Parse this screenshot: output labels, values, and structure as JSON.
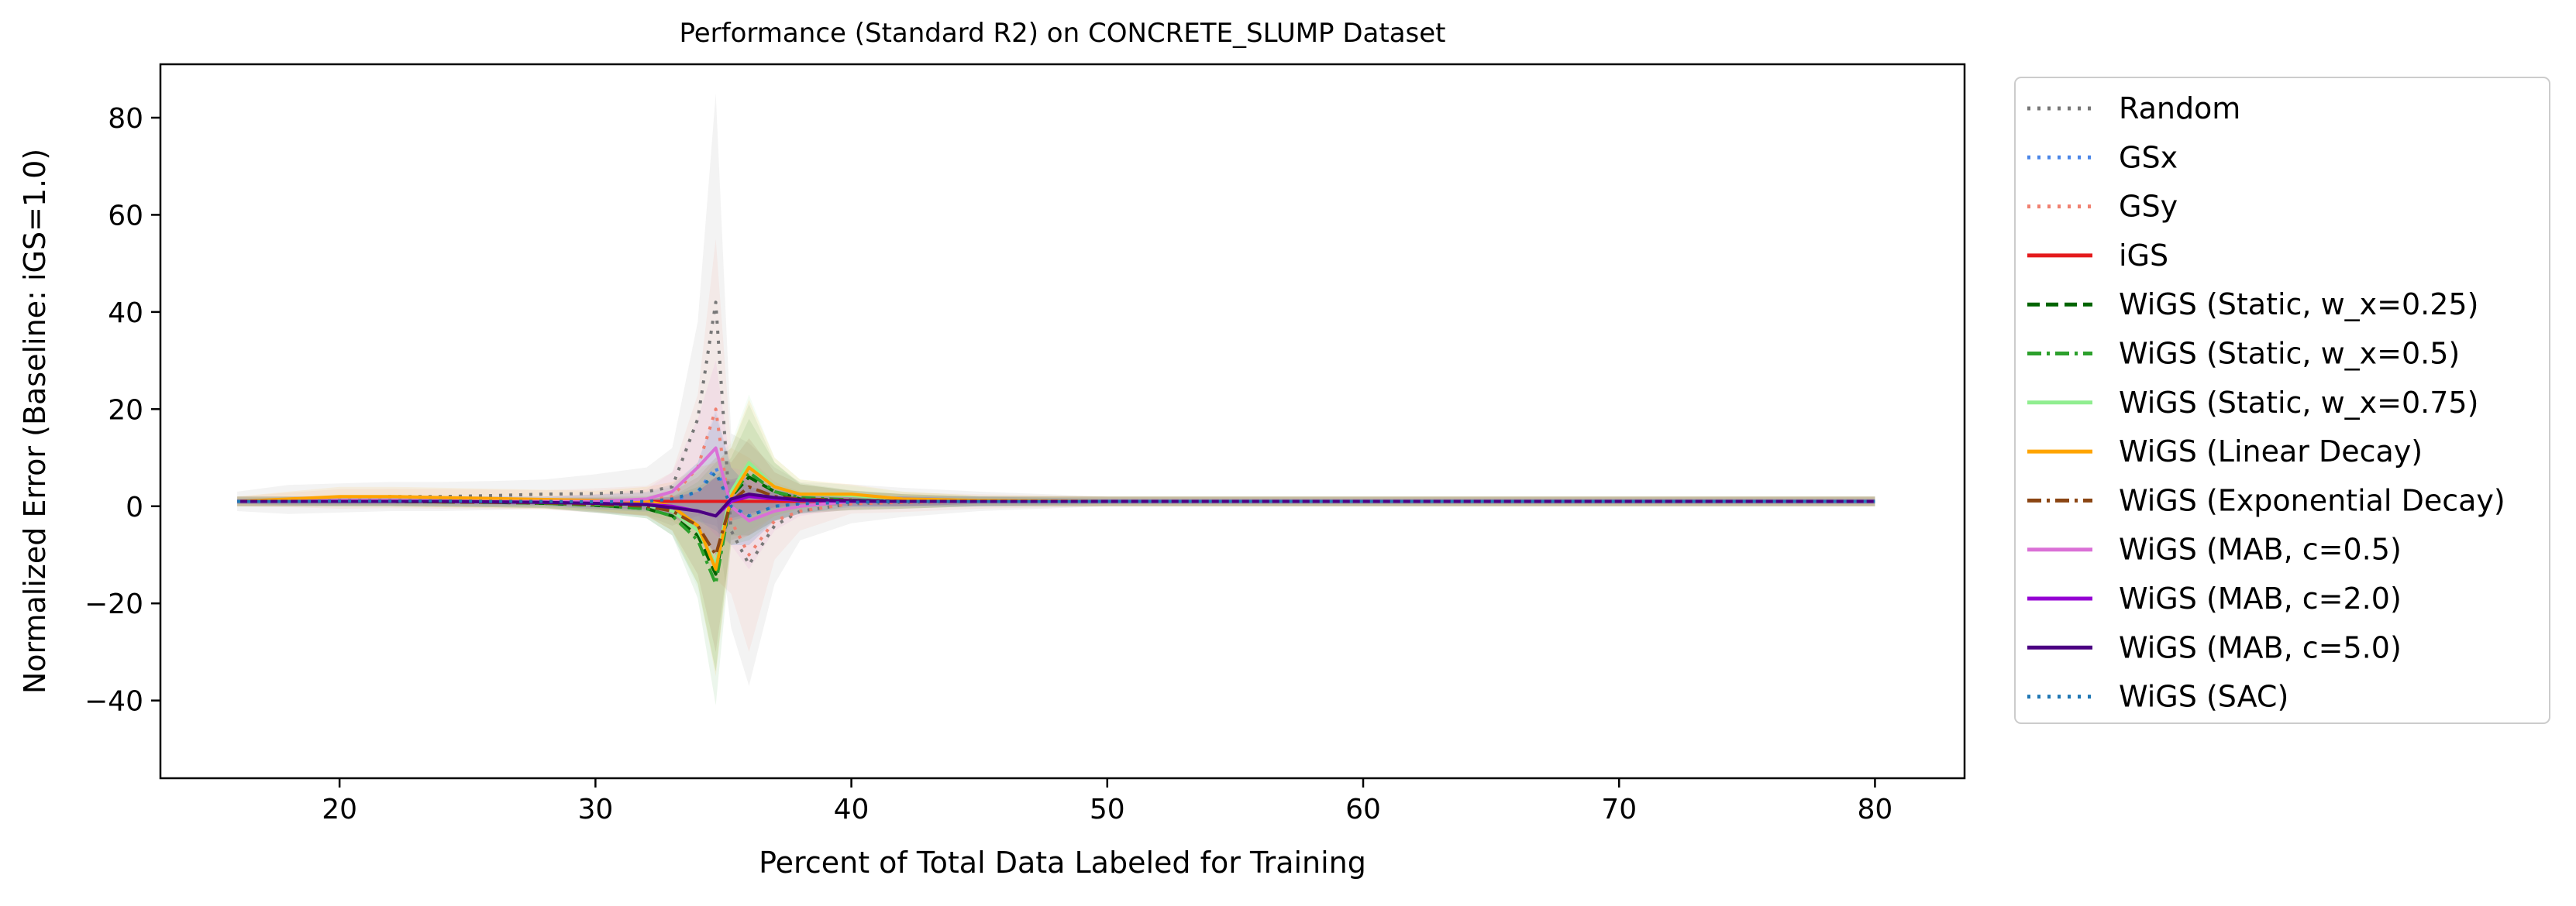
{
  "chart_data": {
    "type": "line",
    "title": "Performance (Standard R2) on CONCRETE_SLUMP Dataset",
    "xlabel": "Percent of Total Data Labeled for Training",
    "ylabel": "Normalized Error (Baseline: iGS=1.0)",
    "xlim": [
      13,
      83.5
    ],
    "ylim": [
      -56,
      91
    ],
    "xticks": [
      20,
      30,
      40,
      50,
      60,
      70,
      80
    ],
    "yticks": [
      -40,
      -20,
      0,
      20,
      40,
      60,
      80
    ],
    "grid": false,
    "legend_position": "outside-right",
    "x": [
      16,
      18,
      20,
      22,
      24,
      26,
      28,
      30,
      32,
      33,
      34,
      34.7,
      35.3,
      36,
      37,
      38,
      40,
      42,
      45,
      50,
      55,
      60,
      65,
      70,
      75,
      80
    ],
    "series": [
      {
        "name": "Random",
        "color": "#777777",
        "dash": "dot",
        "values": [
          1,
          1.4,
          1.7,
          2,
          2,
          2.2,
          2.5,
          2.6,
          3,
          4,
          18,
          42,
          -5,
          -12,
          -4,
          -1,
          0.5,
          0.8,
          1,
          1,
          1,
          1,
          1,
          1,
          1,
          1
        ],
        "band": [
          2,
          3,
          3,
          3,
          3,
          3,
          3,
          4,
          5,
          8,
          20,
          43,
          20,
          25,
          12,
          6,
          4,
          3,
          2,
          1,
          1,
          1,
          1,
          1,
          1,
          1
        ]
      },
      {
        "name": "GSx",
        "color": "#4a86e8",
        "dash": "dot",
        "values": [
          1,
          1.1,
          1.2,
          1.2,
          1.1,
          1,
          1,
          0.9,
          0.8,
          1,
          3,
          8,
          0,
          -2,
          0,
          0.5,
          1,
          1,
          1,
          1,
          1,
          1,
          1,
          1,
          1,
          1
        ],
        "band": [
          0.5,
          0.8,
          1,
          1,
          1,
          1,
          1,
          1.5,
          2,
          3,
          6,
          12,
          8,
          6,
          3,
          2,
          1,
          1,
          1,
          0.5,
          0.5,
          0.5,
          0.5,
          0.5,
          0.5,
          0.5
        ]
      },
      {
        "name": "GSy",
        "color": "#f08070",
        "dash": "dot",
        "values": [
          1,
          1.3,
          1.5,
          1.6,
          1.5,
          1.4,
          1.3,
          1.2,
          1.2,
          2,
          8,
          20,
          -3,
          -10,
          -3,
          -1,
          0.5,
          0.8,
          1,
          1,
          1,
          1,
          1,
          1,
          1,
          1
        ],
        "band": [
          1,
          1.5,
          2,
          2,
          2,
          2,
          2,
          2.5,
          3,
          5,
          15,
          35,
          15,
          20,
          8,
          4,
          2,
          2,
          1.5,
          1,
          1,
          1,
          1,
          1,
          1,
          1
        ]
      },
      {
        "name": "iGS",
        "color": "#e41a1c",
        "dash": "solid",
        "values": [
          1,
          1,
          1,
          1,
          1,
          1,
          1,
          1,
          1,
          1,
          1,
          1,
          1,
          1,
          1,
          1,
          1,
          1,
          1,
          1,
          1,
          1,
          1,
          1,
          1,
          1
        ],
        "band": [
          0,
          0,
          0,
          0,
          0,
          0,
          0,
          0,
          0,
          0,
          0,
          0,
          0,
          0,
          0,
          0,
          0,
          0,
          0,
          0,
          0,
          0,
          0,
          0,
          0,
          0
        ]
      },
      {
        "name": "WiGS (Static, w_x=0.25)",
        "color": "#006400",
        "dash": "dash",
        "values": [
          1,
          1,
          1,
          1,
          0.9,
          0.8,
          0.6,
          0.2,
          -0.5,
          -2,
          -6,
          -14,
          2,
          6,
          3,
          1.5,
          1.2,
          1,
          1,
          1,
          1,
          1,
          1,
          1,
          1,
          1
        ],
        "band": [
          1,
          1,
          1,
          1,
          1,
          1,
          1,
          1.5,
          2,
          4,
          10,
          20,
          8,
          12,
          6,
          3,
          2,
          1.5,
          1,
          1,
          1,
          1,
          1,
          1,
          1,
          1
        ]
      },
      {
        "name": "WiGS (Static, w_x=0.5)",
        "color": "#2ca02c",
        "dash": "dashdot",
        "values": [
          1,
          1,
          1,
          1,
          0.9,
          0.8,
          0.6,
          0.2,
          -0.5,
          -2,
          -7,
          -16,
          2,
          7,
          3,
          1.8,
          1.3,
          1,
          1,
          1,
          1,
          1,
          1,
          1,
          1,
          1
        ],
        "band": [
          1,
          1,
          1,
          1,
          1,
          1,
          1,
          1.5,
          2,
          4,
          12,
          25,
          10,
          14,
          6,
          3,
          2,
          1.5,
          1,
          1,
          1,
          1,
          1,
          1,
          1,
          1
        ]
      },
      {
        "name": "WiGS (Static, w_x=0.75)",
        "color": "#90ee90",
        "dash": "solid",
        "values": [
          1,
          1,
          1,
          1,
          1,
          0.9,
          0.8,
          0.5,
          0.2,
          -1,
          -5,
          -12,
          3,
          9,
          4,
          2.5,
          2.2,
          1.5,
          1.2,
          1,
          1,
          1,
          1,
          1,
          1,
          1
        ],
        "band": [
          1,
          1,
          1,
          1,
          1,
          1,
          1,
          1.5,
          2,
          4,
          12,
          22,
          10,
          14,
          6,
          3,
          2,
          1.5,
          1,
          1,
          1,
          1,
          1,
          1,
          1,
          1
        ]
      },
      {
        "name": "WiGS (Linear Decay)",
        "color": "#ffa500",
        "dash": "solid",
        "values": [
          1,
          1.5,
          2,
          2,
          1.8,
          1.6,
          1.4,
          1.2,
          1,
          0,
          -4,
          -13,
          2,
          8,
          4,
          2.5,
          2.5,
          1.5,
          1.2,
          1,
          1,
          1,
          1,
          1,
          1,
          1
        ],
        "band": [
          1,
          1.5,
          2,
          2,
          2,
          2,
          2,
          2,
          3,
          5,
          12,
          22,
          10,
          14,
          6,
          3,
          2,
          1.5,
          1,
          1,
          1,
          1,
          1,
          1,
          1,
          1
        ]
      },
      {
        "name": "WiGS (Exponential Decay)",
        "color": "#8b4513",
        "dash": "dashdot",
        "values": [
          1,
          1,
          1,
          1,
          0.9,
          0.8,
          0.7,
          0.4,
          0,
          -1,
          -4,
          -10,
          1,
          4,
          2,
          1.5,
          1.2,
          1,
          1,
          1,
          1,
          1,
          1,
          1,
          1,
          1
        ],
        "band": [
          1,
          1,
          1,
          1,
          1,
          1,
          1,
          1.5,
          2,
          4,
          10,
          20,
          8,
          10,
          5,
          3,
          2,
          1.5,
          1,
          1,
          1,
          1,
          1,
          1,
          1,
          1
        ]
      },
      {
        "name": "WiGS (MAB, c=0.5)",
        "color": "#da70d6",
        "dash": "solid",
        "values": [
          1,
          1,
          1.2,
          1.2,
          1.1,
          1,
          1,
          1,
          1.5,
          3,
          8,
          12,
          0,
          -3,
          -1,
          0,
          1,
          1,
          1,
          1,
          1,
          1,
          1,
          1,
          1,
          1
        ],
        "band": [
          1,
          1,
          1,
          1,
          1,
          1,
          1,
          1.5,
          2,
          4,
          10,
          18,
          8,
          10,
          4,
          2,
          1.5,
          1,
          1,
          1,
          1,
          1,
          1,
          1,
          1,
          1
        ]
      },
      {
        "name": "WiGS (MAB, c=2.0)",
        "color": "#9400d3",
        "dash": "solid",
        "values": [
          1,
          1,
          1,
          1,
          1,
          0.9,
          0.8,
          0.6,
          0.4,
          0,
          -1,
          -2,
          1,
          2,
          1.5,
          1.2,
          1,
          1,
          1,
          1,
          1,
          1,
          1,
          1,
          1,
          1
        ],
        "band": [
          0.5,
          0.5,
          0.5,
          0.5,
          0.5,
          0.5,
          0.5,
          0.8,
          1,
          2,
          4,
          8,
          4,
          4,
          2,
          1,
          1,
          1,
          0.5,
          0.5,
          0.5,
          0.5,
          0.5,
          0.5,
          0.5,
          0.5
        ]
      },
      {
        "name": "WiGS (MAB, c=5.0)",
        "color": "#4b0082",
        "dash": "solid",
        "values": [
          1,
          1,
          1,
          1,
          1,
          0.9,
          0.8,
          0.6,
          0.3,
          -0.3,
          -1,
          -2,
          1.5,
          2.5,
          1.8,
          1.3,
          1.1,
          1,
          1,
          1,
          1,
          1,
          1,
          1,
          1,
          1
        ],
        "band": [
          0.5,
          0.5,
          0.5,
          0.5,
          0.5,
          0.5,
          0.5,
          0.8,
          1,
          2,
          4,
          8,
          4,
          4,
          2,
          1,
          1,
          1,
          0.5,
          0.5,
          0.5,
          0.5,
          0.5,
          0.5,
          0.5,
          0.5
        ]
      },
      {
        "name": "WiGS (SAC)",
        "color": "#1f77b4",
        "dash": "dot",
        "values": [
          1,
          1,
          1.1,
          1.1,
          1.1,
          1,
          1,
          0.9,
          1,
          1.5,
          3,
          7,
          0,
          -2,
          0,
          0.5,
          0.8,
          1,
          1,
          1,
          1,
          1,
          1,
          1,
          1,
          1
        ],
        "band": [
          0.5,
          0.8,
          1,
          1,
          1,
          1,
          1,
          1.5,
          2,
          3,
          6,
          12,
          8,
          6,
          3,
          2,
          1,
          1,
          1,
          0.5,
          0.5,
          0.5,
          0.5,
          0.5,
          0.5,
          0.5
        ]
      }
    ]
  }
}
